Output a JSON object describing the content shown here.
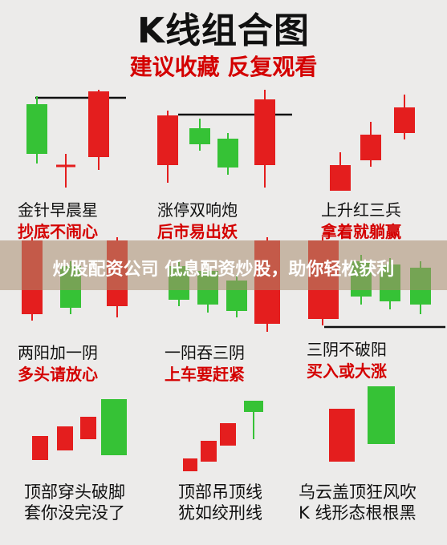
{
  "title": "K线组合图",
  "subtitle": "建议收藏 反复观看",
  "banner": "炒股配资公司 低息配资炒股，助你轻松获利",
  "patterns": [
    {
      "name": "金针早晨星",
      "desc": "抄底不闹心"
    },
    {
      "name": "涨停双响炮",
      "desc": "后市易出妖"
    },
    {
      "name": "上升红三兵",
      "desc": "拿着就躺赢"
    },
    {
      "name": "两阳加一阴",
      "desc": "多头请放心"
    },
    {
      "name": "一阳吞三阴",
      "desc": "上车要赶紧"
    },
    {
      "name": "三阴不破阳",
      "desc": "买入或大涨"
    },
    {
      "name": "顶部穿头破脚",
      "desc": "套你没完没了"
    },
    {
      "name": "顶部吊顶线",
      "desc": "犹如绞刑线"
    },
    {
      "name": "乌云盖顶狂风吹",
      "desc": "K 线形态根根黑"
    }
  ],
  "colors": {
    "up": "#e41e1e",
    "down": "#36c236",
    "text_red": "#d40000"
  }
}
